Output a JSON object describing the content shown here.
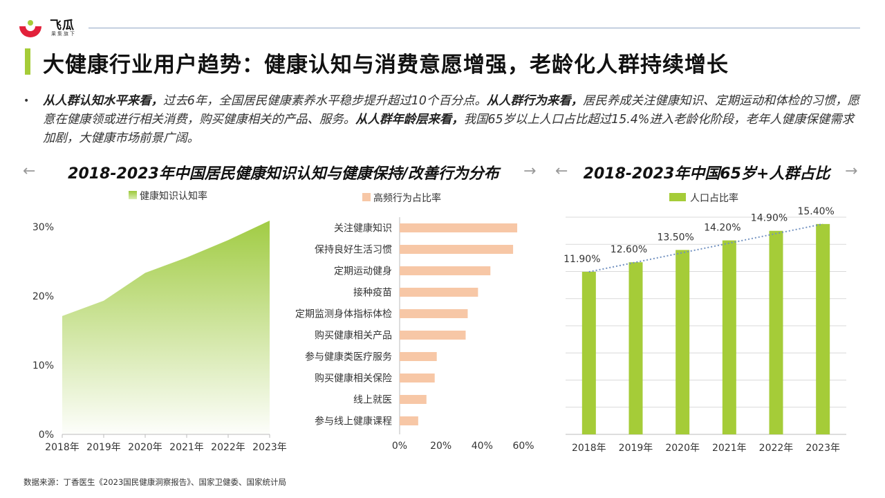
{
  "brand": {
    "name": "飞瓜",
    "tagline": "果集旗下"
  },
  "page_title": "大健康行业用户趋势：健康认知与消费意愿增强，老龄化人群持续增长",
  "summary": {
    "part1_bold": "从人群认知水平来看，",
    "part1_text": "过去6年，全国居民健康素养水平稳步提升超过10个百分点。",
    "part2_bold": "从人群行为来看，",
    "part2_text": "居民养成关注健康知识、定期运动和体检的习惯，愿意在健康领或进行相关消费，购买健康相关的产品、服务。",
    "part3_bold": "从人群年龄层来看，",
    "part3_text": "我国65岁以上人口占比超过15.4%进入老龄化阶段，老年人健康保健需求加剧，大健康市场前景广阔。"
  },
  "section_titles": {
    "left": "2018-2023年中国居民健康知识认知与健康保持/改善行为分布",
    "right": "2018-2023年中国65岁+人群占比"
  },
  "source_note": "数据来源：丁香医生《2023国民健康洞察报告》、国家卫健委、国家统计局",
  "colors": {
    "green": "#a5cc38",
    "peach": "#f7c7a6",
    "trend": "#6f8fbf",
    "grid": "#d9d9d9"
  },
  "chart_data": [
    {
      "type": "area",
      "legend": "健康知识认知率",
      "categories": [
        "2018年",
        "2019年",
        "2020年",
        "2021年",
        "2022年",
        "2023年"
      ],
      "values": [
        17,
        19.2,
        23.2,
        25.4,
        27.9,
        30.7
      ],
      "yticks": [
        "0%",
        "10%",
        "20%",
        "30%"
      ],
      "ylim": [
        0,
        30
      ]
    },
    {
      "type": "bar",
      "orientation": "horizontal",
      "legend": "高频行为占比率",
      "categories": [
        "关注健康知识",
        "保持良好生活习惯",
        "定期运动健身",
        "接种疫苗",
        "定期监测身体指标体检",
        "购买健康相关产品",
        "参与健康类医疗服务",
        "购买健康相关保险",
        "线上就医",
        "参与线上健康课程"
      ],
      "values": [
        57,
        55,
        44,
        38,
        33,
        32,
        18,
        17,
        13,
        9
      ],
      "xticks": [
        "0%",
        "20%",
        "40%",
        "60%"
      ],
      "xlim": [
        0,
        60
      ]
    },
    {
      "type": "bar",
      "legend": "人口占比率",
      "categories": [
        "2018年",
        "2019年",
        "2020年",
        "2021年",
        "2022年",
        "2023年"
      ],
      "values": [
        11.9,
        12.6,
        13.5,
        14.2,
        14.9,
        15.4
      ],
      "labels": [
        "11.90%",
        "12.60%",
        "13.50%",
        "14.20%",
        "14.90%",
        "15.40%"
      ],
      "trendline": true,
      "ylim": [
        0,
        15.9
      ]
    }
  ]
}
